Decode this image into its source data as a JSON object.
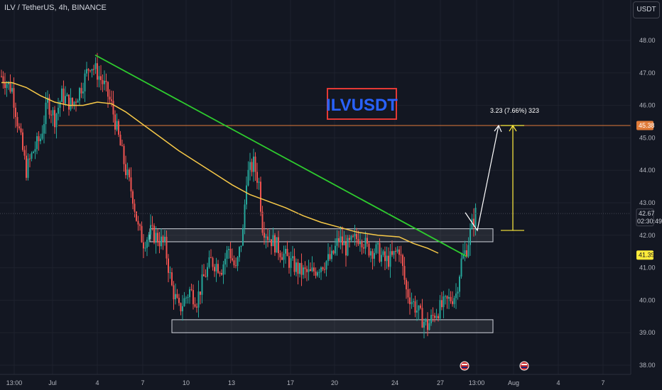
{
  "header": {
    "symbol": "ILV / TetherUS, 4h, BINANCE",
    "currency_button": "USDT"
  },
  "colors": {
    "background": "#131722",
    "bull": "#26a69a",
    "bear": "#ef5350",
    "ma": "#f7c948",
    "trendline": "#2ecc2e",
    "target": "#ffeb3b",
    "resistance": "#e07b39",
    "title_box": "#e53935",
    "title_text": "#2962ff"
  },
  "chart_data": {
    "type": "candlestick",
    "title": "ILVUSDT",
    "ylim": [
      38.0,
      48.5
    ],
    "y_ticks": [
      "48.00",
      "47.00",
      "46.00",
      "45.00",
      "44.00",
      "43.00",
      "42.00",
      "41.00",
      "40.00",
      "39.00",
      "38.00"
    ],
    "x_ticks": [
      "13:00",
      "Jul",
      "4",
      "7",
      "10",
      "13",
      "17",
      "20",
      "24",
      "27",
      "13:00",
      "Aug",
      "4",
      "7"
    ],
    "ma_points": [
      [
        0,
        46.7
      ],
      [
        6,
        46.7
      ],
      [
        14,
        46.55
      ],
      [
        22,
        46.3
      ],
      [
        30,
        46.1
      ],
      [
        38,
        46.0
      ],
      [
        46,
        46.0
      ],
      [
        54,
        46.1
      ],
      [
        62,
        46.05
      ],
      [
        70,
        45.8
      ],
      [
        80,
        45.4
      ],
      [
        90,
        45.0
      ],
      [
        100,
        44.6
      ],
      [
        110,
        44.25
      ],
      [
        120,
        43.9
      ],
      [
        130,
        43.55
      ],
      [
        140,
        43.25
      ],
      [
        150,
        43.05
      ],
      [
        160,
        42.85
      ],
      [
        170,
        42.6
      ],
      [
        180,
        42.4
      ],
      [
        190,
        42.25
      ],
      [
        200,
        42.1
      ],
      [
        212,
        42.0
      ],
      [
        224,
        41.95
      ],
      [
        232,
        41.75
      ],
      [
        240,
        41.6
      ],
      [
        246,
        41.45
      ]
    ],
    "trendline": {
      "start": [
        0,
        47.55
      ],
      "end": [
        263,
        41.35
      ]
    },
    "zones": [
      {
        "low": 41.8,
        "high": 42.2
      },
      {
        "low": 39.0,
        "high": 39.4
      }
    ],
    "resistance_level": 45.38,
    "target": {
      "from": 42.15,
      "to": 45.38,
      "label": "3.23 (7.66%) 323"
    },
    "projection": [
      [
        42.7,
        0
      ],
      [
        42.15,
        4
      ],
      [
        45.38,
        16
      ]
    ],
    "price_tags": [
      {
        "value": "45.38",
        "level": 45.38,
        "color": "#e07b39",
        "text_color": "#ffffff"
      },
      {
        "value": "42.67",
        "sub": "02:30:49",
        "level": 42.67,
        "color": "#131722",
        "text_color": "#d1d4dc"
      },
      {
        "value": "41.39",
        "level": 41.39,
        "color": "#ffeb3b",
        "text_color": "#131722"
      }
    ],
    "event_icons_count": 2
  }
}
